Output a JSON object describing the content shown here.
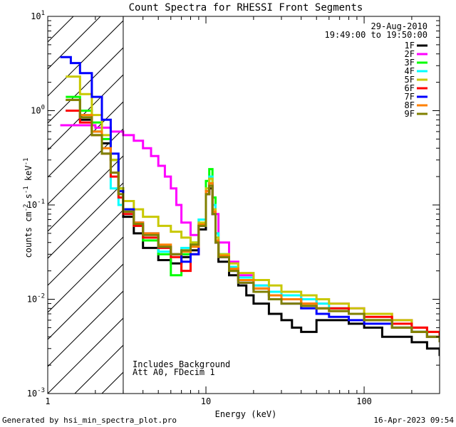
{
  "chart_data": {
    "type": "line",
    "title": "Count Spectra for RHESSI Front Segments",
    "xlabel": "Energy (keV)",
    "ylabel_parts": {
      "base": "counts cm",
      "exp1": "-2",
      "mid": " s",
      "exp2": "-1",
      "end": " keV",
      "exp3": "-1"
    },
    "xscale": "log",
    "yscale": "log",
    "xlim": [
      1,
      300
    ],
    "ylim": [
      0.001,
      10
    ],
    "x_ticks": [
      {
        "value": 1,
        "label": "1"
      },
      {
        "value": 10,
        "label": "10"
      },
      {
        "value": 100,
        "label": "100"
      }
    ],
    "y_ticks": [
      {
        "value": 0.001,
        "base": "10",
        "exp": "-3"
      },
      {
        "value": 0.01,
        "base": "10",
        "exp": "-2"
      },
      {
        "value": 0.1,
        "base": "10",
        "exp": "-1"
      },
      {
        "value": 1,
        "base": "10",
        "exp": "0"
      },
      {
        "value": 10,
        "base": "10",
        "exp": "1"
      }
    ],
    "shaded_region": {
      "x_from": 1,
      "x_to": 3,
      "style": "diagonal-hatch"
    },
    "annotations": [
      "Includes Background",
      "Att A0, FDecim 1"
    ],
    "date": "29-Aug-2010",
    "time_range": "19:49:00 to 19:50:00",
    "series": [
      {
        "name": "1F",
        "color": "#000000",
        "x": [
          1.3,
          1.6,
          1.9,
          2.2,
          2.5,
          2.8,
          3.0,
          3.5,
          4.0,
          5.0,
          6.0,
          7.0,
          8.0,
          9.0,
          10.0,
          10.5,
          11.0,
          11.5,
          12.0,
          14.0,
          16.0,
          18.0,
          20.0,
          25.0,
          30.0,
          35.0,
          40.0,
          50.0,
          60.0,
          80.0,
          100.0,
          130.0,
          160.0,
          200.0,
          250.0,
          300.0
        ],
        "y": [
          1.0,
          0.8,
          0.6,
          0.45,
          0.3,
          0.15,
          0.075,
          0.05,
          0.035,
          0.026,
          0.024,
          0.028,
          0.033,
          0.055,
          0.13,
          0.15,
          0.08,
          0.04,
          0.025,
          0.018,
          0.014,
          0.011,
          0.009,
          0.007,
          0.006,
          0.005,
          0.0045,
          0.006,
          0.006,
          0.0055,
          0.005,
          0.004,
          0.004,
          0.0035,
          0.003,
          0.0025
        ]
      },
      {
        "name": "2F",
        "color": "#ff00ff",
        "x": [
          1.2,
          1.5,
          2.0,
          2.5,
          3.0,
          3.5,
          4.0,
          4.5,
          5.0,
          5.5,
          6.0,
          6.5,
          7.0,
          8.0,
          9.0,
          10.0,
          10.5,
          11.0,
          12.0,
          14.0,
          16.0,
          20.0,
          25.0,
          30.0,
          40.0,
          50.0,
          60.0,
          80.0,
          100.0,
          150.0,
          200.0,
          250.0,
          300.0
        ],
        "y": [
          0.7,
          0.7,
          0.66,
          0.6,
          0.55,
          0.48,
          0.4,
          0.33,
          0.26,
          0.2,
          0.15,
          0.1,
          0.065,
          0.048,
          0.06,
          0.14,
          0.17,
          0.08,
          0.04,
          0.025,
          0.018,
          0.014,
          0.012,
          0.011,
          0.01,
          0.009,
          0.009,
          0.008,
          0.007,
          0.006,
          0.005,
          0.004,
          0.0035
        ]
      },
      {
        "name": "3F",
        "color": "#00ff00",
        "x": [
          1.3,
          1.6,
          1.9,
          2.2,
          2.5,
          2.8,
          3.0,
          3.5,
          4.0,
          5.0,
          6.0,
          7.0,
          8.0,
          9.0,
          10.0,
          10.5,
          11.0,
          11.5,
          12.0,
          14.0,
          16.0,
          20.0,
          25.0,
          30.0,
          40.0,
          50.0,
          60.0,
          80.0,
          100.0,
          150.0,
          200.0,
          250.0,
          300.0
        ],
        "y": [
          1.4,
          1.0,
          0.75,
          0.5,
          0.3,
          0.15,
          0.09,
          0.06,
          0.042,
          0.03,
          0.018,
          0.03,
          0.04,
          0.07,
          0.18,
          0.24,
          0.12,
          0.05,
          0.03,
          0.022,
          0.016,
          0.013,
          0.011,
          0.01,
          0.009,
          0.008,
          0.008,
          0.007,
          0.006,
          0.005,
          0.0045,
          0.004,
          0.0035
        ]
      },
      {
        "name": "4F",
        "color": "#00ffff",
        "x": [
          1.3,
          1.6,
          1.9,
          2.2,
          2.5,
          2.8,
          3.0,
          3.5,
          4.0,
          5.0,
          6.0,
          7.0,
          8.0,
          9.0,
          10.0,
          10.5,
          11.0,
          11.5,
          12.0,
          14.0,
          16.0,
          20.0,
          25.0,
          30.0,
          40.0,
          50.0,
          60.0,
          80.0,
          100.0,
          150.0,
          200.0,
          250.0,
          300.0
        ],
        "y": [
          1.3,
          0.9,
          0.6,
          0.35,
          0.15,
          0.1,
          0.08,
          0.06,
          0.045,
          0.032,
          0.03,
          0.035,
          0.04,
          0.07,
          0.15,
          0.2,
          0.1,
          0.05,
          0.03,
          0.022,
          0.017,
          0.014,
          0.012,
          0.011,
          0.01,
          0.009,
          0.008,
          0.007,
          0.006,
          0.005,
          0.0045,
          0.004,
          0.0035
        ]
      },
      {
        "name": "5F",
        "color": "#c8c800",
        "x": [
          1.3,
          1.6,
          1.9,
          2.2,
          2.5,
          2.8,
          3.0,
          3.5,
          4.0,
          5.0,
          6.0,
          7.0,
          8.0,
          9.0,
          10.0,
          10.5,
          11.0,
          11.5,
          12.0,
          14.0,
          16.0,
          20.0,
          25.0,
          30.0,
          40.0,
          50.0,
          60.0,
          80.0,
          100.0,
          150.0,
          200.0,
          250.0,
          300.0
        ],
        "y": [
          2.3,
          1.5,
          0.9,
          0.55,
          0.3,
          0.15,
          0.11,
          0.09,
          0.075,
          0.06,
          0.052,
          0.045,
          0.04,
          0.065,
          0.15,
          0.19,
          0.09,
          0.045,
          0.03,
          0.024,
          0.019,
          0.016,
          0.014,
          0.012,
          0.011,
          0.01,
          0.009,
          0.008,
          0.007,
          0.006,
          0.005,
          0.0045,
          0.004
        ]
      },
      {
        "name": "6F",
        "color": "#ff0000",
        "x": [
          1.3,
          1.6,
          1.9,
          2.2,
          2.5,
          2.8,
          3.0,
          3.5,
          4.0,
          5.0,
          6.0,
          7.0,
          8.0,
          9.0,
          10.0,
          10.5,
          11.0,
          11.5,
          12.0,
          14.0,
          16.0,
          20.0,
          25.0,
          30.0,
          40.0,
          50.0,
          60.0,
          80.0,
          100.0,
          150.0,
          200.0,
          250.0,
          300.0
        ],
        "y": [
          1.0,
          0.75,
          0.55,
          0.35,
          0.2,
          0.12,
          0.08,
          0.06,
          0.045,
          0.035,
          0.028,
          0.02,
          0.03,
          0.06,
          0.13,
          0.16,
          0.08,
          0.04,
          0.028,
          0.021,
          0.016,
          0.013,
          0.011,
          0.01,
          0.009,
          0.008,
          0.008,
          0.007,
          0.0065,
          0.0055,
          0.005,
          0.0045,
          0.004
        ]
      },
      {
        "name": "7F",
        "color": "#0000ff",
        "x": [
          1.2,
          1.4,
          1.6,
          1.9,
          2.2,
          2.5,
          2.8,
          3.0,
          3.5,
          4.0,
          5.0,
          6.0,
          7.0,
          8.0,
          9.0,
          10.0,
          10.5,
          11.0,
          11.5,
          12.0,
          14.0,
          16.0,
          20.0,
          25.0,
          30.0,
          40.0,
          50.0,
          60.0,
          80.0,
          100.0,
          150.0,
          200.0,
          250.0,
          300.0
        ],
        "y": [
          3.7,
          3.2,
          2.5,
          1.4,
          0.8,
          0.35,
          0.14,
          0.09,
          0.065,
          0.05,
          0.036,
          0.03,
          0.025,
          0.03,
          0.06,
          0.14,
          0.17,
          0.08,
          0.04,
          0.028,
          0.02,
          0.015,
          0.012,
          0.01,
          0.009,
          0.008,
          0.007,
          0.0065,
          0.006,
          0.0055,
          0.005,
          0.0045,
          0.004,
          0.0035
        ]
      },
      {
        "name": "8F",
        "color": "#ff8000",
        "x": [
          1.3,
          1.6,
          1.9,
          2.2,
          2.5,
          2.8,
          3.0,
          3.5,
          4.0,
          5.0,
          6.0,
          7.0,
          8.0,
          9.0,
          10.0,
          10.5,
          11.0,
          11.5,
          12.0,
          14.0,
          16.0,
          20.0,
          25.0,
          30.0,
          40.0,
          50.0,
          60.0,
          80.0,
          100.0,
          150.0,
          200.0,
          250.0,
          300.0
        ],
        "y": [
          1.3,
          0.9,
          0.6,
          0.4,
          0.22,
          0.13,
          0.085,
          0.065,
          0.05,
          0.038,
          0.03,
          0.032,
          0.036,
          0.062,
          0.14,
          0.17,
          0.085,
          0.042,
          0.029,
          0.021,
          0.016,
          0.013,
          0.011,
          0.01,
          0.009,
          0.008,
          0.0075,
          0.007,
          0.006,
          0.005,
          0.0045,
          0.004,
          0.0035
        ]
      },
      {
        "name": "9F",
        "color": "#808000",
        "x": [
          1.3,
          1.6,
          1.9,
          2.2,
          2.5,
          2.8,
          3.0,
          3.5,
          4.0,
          5.0,
          6.0,
          7.0,
          8.0,
          9.0,
          10.0,
          10.5,
          11.0,
          11.5,
          12.0,
          14.0,
          16.0,
          20.0,
          25.0,
          30.0,
          40.0,
          50.0,
          60.0,
          80.0,
          100.0,
          150.0,
          200.0,
          250.0,
          300.0
        ],
        "y": [
          1.3,
          0.85,
          0.55,
          0.35,
          0.22,
          0.13,
          0.085,
          0.063,
          0.048,
          0.036,
          0.03,
          0.033,
          0.038,
          0.06,
          0.13,
          0.16,
          0.08,
          0.04,
          0.028,
          0.02,
          0.015,
          0.012,
          0.01,
          0.009,
          0.0085,
          0.008,
          0.0075,
          0.007,
          0.006,
          0.005,
          0.0045,
          0.004,
          0.0035
        ]
      }
    ]
  },
  "footer": {
    "generated_by": "Generated by hsi_min_spectra_plot.pro",
    "timestamp": "16-Apr-2023 09:54"
  }
}
